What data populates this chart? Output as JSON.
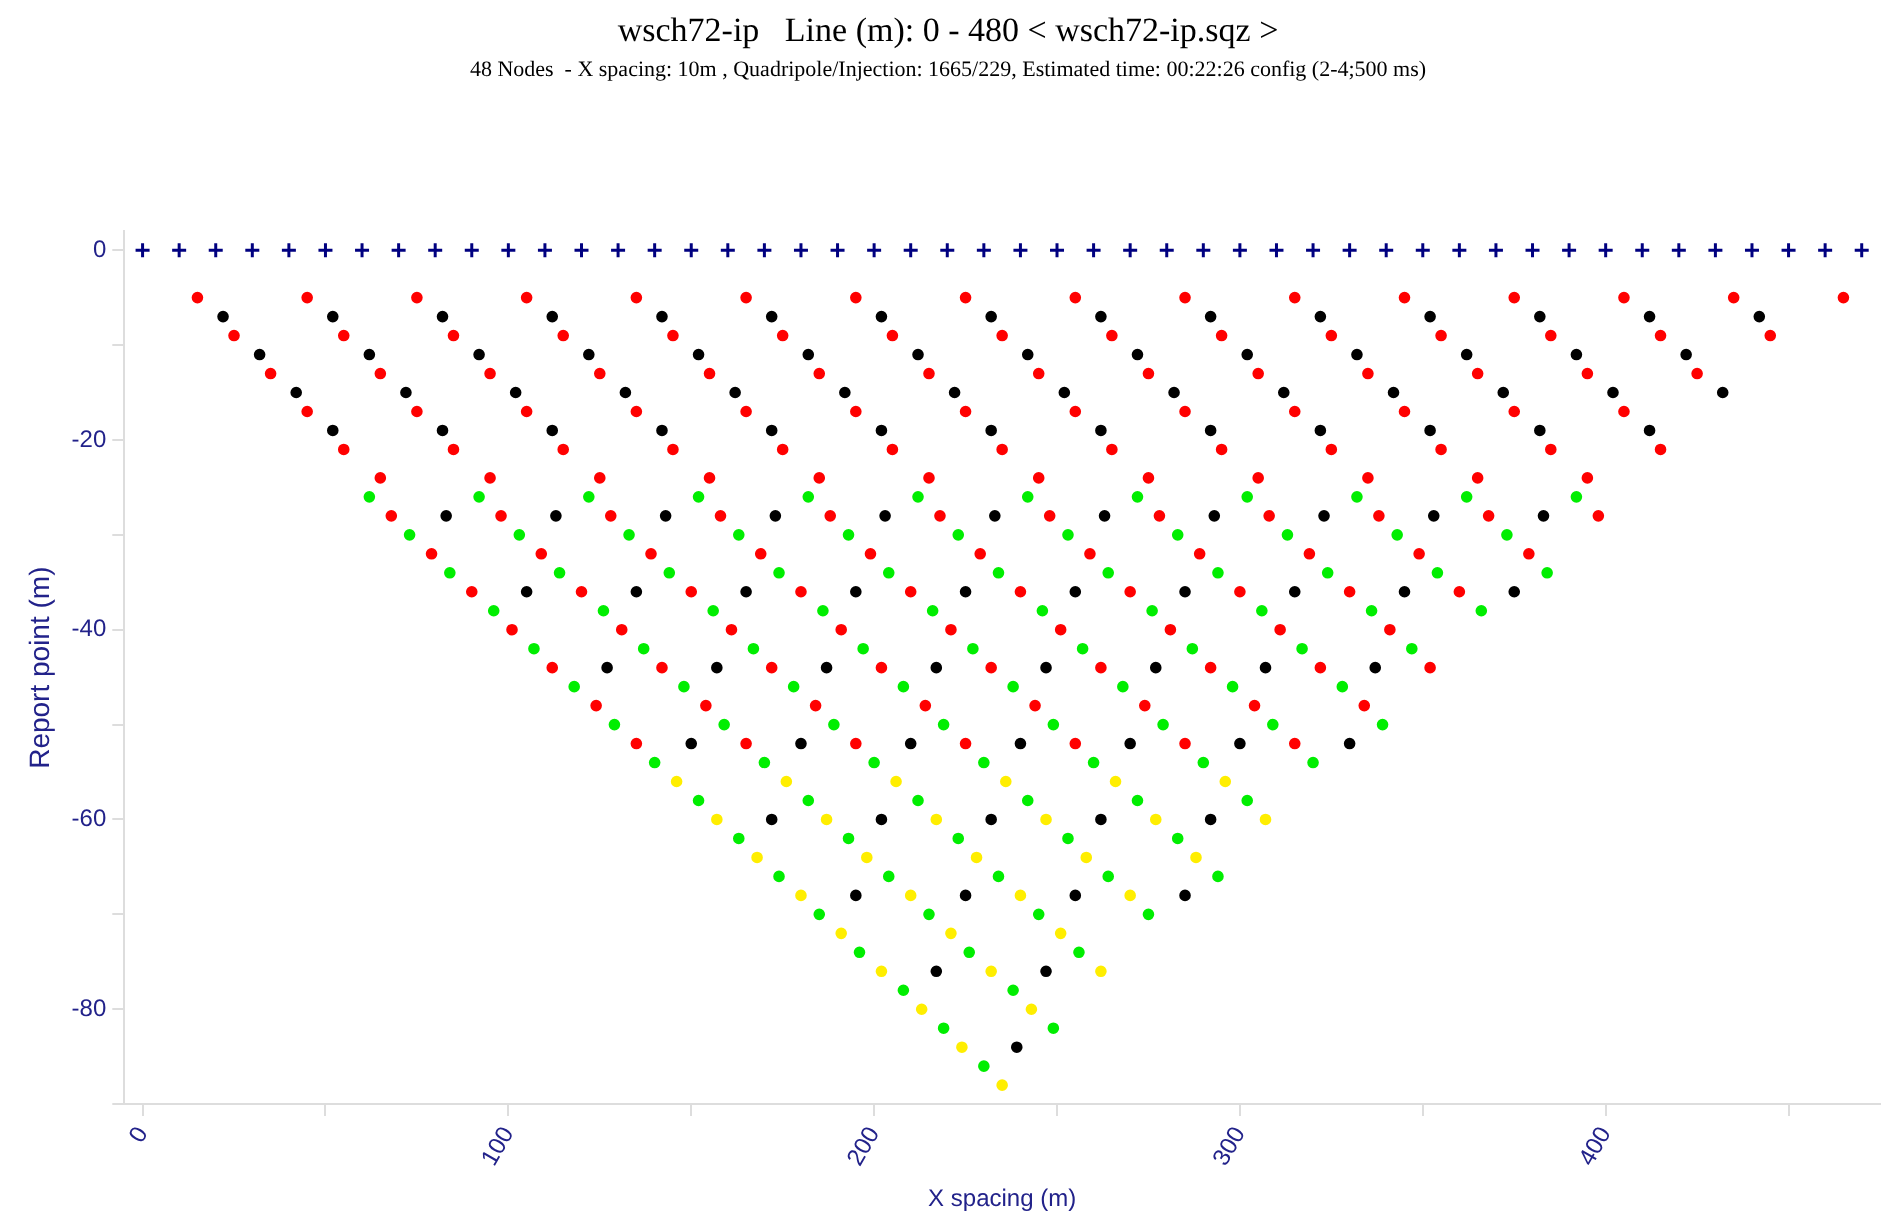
{
  "chart_data": {
    "type": "scatter",
    "title": "wsch72-ip   Line (m): 0 - 480 < wsch72-ip.sqz >",
    "subtitle": "48 Nodes  - X spacing: 10m , Quadripole/Injection: 1665/229, Estimated time: 00:22:26 config (2-4;500 ms)",
    "xlabel": "X spacing (m)",
    "ylabel": "Report point (m)",
    "xlim": [
      -5,
      475
    ],
    "ylim": [
      -90,
      2
    ],
    "xticks": [
      0,
      {
        "value": 50,
        "label": null
      },
      100,
      {
        "value": 150,
        "label": null
      },
      200,
      {
        "value": 250,
        "label": null
      },
      300,
      {
        "value": 350,
        "label": null
      },
      400,
      {
        "value": 450,
        "label": null
      }
    ],
    "yticks": [
      0,
      {
        "value": -10,
        "label": null
      },
      -20,
      {
        "value": -30,
        "label": null
      },
      -40,
      {
        "value": -50,
        "label": null
      },
      -60,
      {
        "value": -70,
        "label": null
      },
      -80,
      {
        "value": -90,
        "label": null
      }
    ],
    "series": [
      {
        "color": "#000080",
        "marker": "cross",
        "x": [
          0,
          10,
          20,
          30,
          40,
          50,
          60,
          70,
          80,
          90,
          100,
          110,
          120,
          130,
          140,
          150,
          160,
          170,
          180,
          190,
          200,
          210,
          220,
          230,
          240,
          250,
          260,
          270,
          280,
          290,
          300,
          310,
          320,
          330,
          340,
          350,
          360,
          370,
          380,
          390,
          400,
          410,
          420,
          430,
          440,
          450,
          460,
          470
        ],
        "values": [
          0,
          0,
          0,
          0,
          0,
          0,
          0,
          0,
          0,
          0,
          0,
          0,
          0,
          0,
          0,
          0,
          0,
          0,
          0,
          0,
          0,
          0,
          0,
          0,
          0,
          0,
          0,
          0,
          0,
          0,
          0,
          0,
          0,
          0,
          0,
          0,
          0,
          0,
          0,
          0,
          0,
          0,
          0,
          0,
          0,
          0,
          0,
          0
        ]
      },
      {
        "color": "#ffee00",
        "marker": "circle",
        "x": [
          146,
          176,
          206,
          236,
          266,
          296,
          157,
          187,
          217,
          247,
          277,
          307,
          168,
          198,
          228,
          258,
          288,
          180,
          210,
          240,
          270,
          191,
          221,
          251,
          202,
          232,
          262,
          213,
          243,
          224,
          235
        ],
        "values": [
          -56,
          -56,
          -56,
          -56,
          -56,
          -56,
          -60,
          -60,
          -60,
          -60,
          -60,
          -60,
          -64,
          -64,
          -64,
          -64,
          -64,
          -68,
          -68,
          -68,
          -68,
          -72,
          -72,
          -72,
          -76,
          -76,
          -76,
          -80,
          -80,
          -84,
          -88
        ]
      },
      {
        "color": "#00ee00",
        "marker": "circle",
        "x": [
          62,
          92,
          122,
          152,
          182,
          212,
          242,
          272,
          302,
          332,
          362,
          392,
          73,
          103,
          133,
          163,
          193,
          223,
          253,
          283,
          313,
          343,
          373,
          84,
          114,
          144,
          174,
          204,
          234,
          264,
          294,
          324,
          354,
          384,
          96,
          126,
          156,
          186,
          216,
          246,
          276,
          306,
          336,
          366,
          107,
          137,
          167,
          197,
          227,
          257,
          287,
          317,
          347,
          118,
          148,
          178,
          208,
          238,
          268,
          298,
          328,
          129,
          159,
          189,
          219,
          249,
          279,
          309,
          339,
          140,
          170,
          200,
          230,
          260,
          290,
          320,
          152,
          182,
          212,
          242,
          272,
          302,
          163,
          193,
          223,
          253,
          283,
          174,
          204,
          234,
          264,
          294,
          185,
          215,
          245,
          275,
          196,
          226,
          256,
          208,
          238,
          219,
          249,
          230
        ],
        "values": [
          -26,
          -26,
          -26,
          -26,
          -26,
          -26,
          -26,
          -26,
          -26,
          -26,
          -26,
          -26,
          -30,
          -30,
          -30,
          -30,
          -30,
          -30,
          -30,
          -30,
          -30,
          -30,
          -30,
          -34,
          -34,
          -34,
          -34,
          -34,
          -34,
          -34,
          -34,
          -34,
          -34,
          -34,
          -38,
          -38,
          -38,
          -38,
          -38,
          -38,
          -38,
          -38,
          -38,
          -38,
          -42,
          -42,
          -42,
          -42,
          -42,
          -42,
          -42,
          -42,
          -42,
          -46,
          -46,
          -46,
          -46,
          -46,
          -46,
          -46,
          -46,
          -50,
          -50,
          -50,
          -50,
          -50,
          -50,
          -50,
          -50,
          -54,
          -54,
          -54,
          -54,
          -54,
          -54,
          -54,
          -58,
          -58,
          -58,
          -58,
          -58,
          -58,
          -62,
          -62,
          -62,
          -62,
          -62,
          -66,
          -66,
          -66,
          -66,
          -66,
          -70,
          -70,
          -70,
          -70,
          -74,
          -74,
          -74,
          -78,
          -78,
          -82,
          -82,
          -86
        ]
      },
      {
        "color": "#ff0000",
        "marker": "circle",
        "x": [
          15,
          45,
          75,
          105,
          135,
          165,
          195,
          225,
          255,
          285,
          315,
          345,
          375,
          405,
          435,
          465,
          25,
          55,
          85,
          115,
          145,
          175,
          205,
          235,
          265,
          295,
          325,
          355,
          385,
          415,
          445,
          35,
          65,
          95,
          125,
          155,
          185,
          215,
          245,
          275,
          305,
          335,
          365,
          395,
          425,
          45,
          75,
          105,
          135,
          165,
          195,
          225,
          255,
          285,
          315,
          345,
          375,
          405,
          55,
          85,
          115,
          145,
          175,
          205,
          235,
          265,
          295,
          325,
          355,
          385,
          415,
          65,
          95,
          125,
          155,
          185,
          215,
          245,
          275,
          305,
          335,
          365,
          395,
          68,
          98,
          128,
          158,
          188,
          218,
          248,
          278,
          308,
          338,
          368,
          398,
          79,
          109,
          139,
          169,
          199,
          229,
          259,
          289,
          319,
          349,
          379,
          90,
          120,
          150,
          180,
          210,
          240,
          270,
          300,
          330,
          360,
          101,
          131,
          161,
          191,
          221,
          251,
          281,
          311,
          341,
          112,
          142,
          172,
          202,
          232,
          262,
          292,
          322,
          352,
          124,
          154,
          184,
          214,
          244,
          274,
          304,
          334,
          135,
          165,
          195,
          225,
          255,
          285,
          315
        ],
        "values": [
          -5,
          -5,
          -5,
          -5,
          -5,
          -5,
          -5,
          -5,
          -5,
          -5,
          -5,
          -5,
          -5,
          -5,
          -5,
          -5,
          -9,
          -9,
          -9,
          -9,
          -9,
          -9,
          -9,
          -9,
          -9,
          -9,
          -9,
          -9,
          -9,
          -9,
          -9,
          -13,
          -13,
          -13,
          -13,
          -13,
          -13,
          -13,
          -13,
          -13,
          -13,
          -13,
          -13,
          -13,
          -13,
          -17,
          -17,
          -17,
          -17,
          -17,
          -17,
          -17,
          -17,
          -17,
          -17,
          -17,
          -17,
          -17,
          -21,
          -21,
          -21,
          -21,
          -21,
          -21,
          -21,
          -21,
          -21,
          -21,
          -21,
          -21,
          -21,
          -24,
          -24,
          -24,
          -24,
          -24,
          -24,
          -24,
          -24,
          -24,
          -24,
          -24,
          -24,
          -28,
          -28,
          -28,
          -28,
          -28,
          -28,
          -28,
          -28,
          -28,
          -28,
          -28,
          -28,
          -32,
          -32,
          -32,
          -32,
          -32,
          -32,
          -32,
          -32,
          -32,
          -32,
          -32,
          -36,
          -36,
          -36,
          -36,
          -36,
          -36,
          -36,
          -36,
          -36,
          -36,
          -40,
          -40,
          -40,
          -40,
          -40,
          -40,
          -40,
          -40,
          -40,
          -44,
          -44,
          -44,
          -44,
          -44,
          -44,
          -44,
          -44,
          -44,
          -48,
          -48,
          -48,
          -48,
          -48,
          -48,
          -48,
          -48,
          -52,
          -52,
          -52,
          -52,
          -52,
          -52,
          -52
        ]
      },
      {
        "color": "#000000",
        "marker": "circle",
        "x": [
          22,
          52,
          82,
          112,
          142,
          172,
          202,
          232,
          262,
          292,
          322,
          352,
          382,
          412,
          442,
          32,
          62,
          92,
          122,
          152,
          182,
          212,
          242,
          272,
          302,
          332,
          362,
          392,
          422,
          42,
          72,
          102,
          132,
          162,
          192,
          222,
          252,
          282,
          312,
          342,
          372,
          402,
          432,
          52,
          82,
          112,
          142,
          172,
          202,
          232,
          262,
          292,
          322,
          352,
          382,
          412,
          83,
          113,
          143,
          173,
          203,
          233,
          263,
          293,
          323,
          353,
          383,
          105,
          135,
          165,
          195,
          225,
          255,
          285,
          315,
          345,
          375,
          127,
          157,
          187,
          217,
          247,
          277,
          307,
          337,
          150,
          180,
          210,
          240,
          270,
          300,
          330,
          172,
          202,
          232,
          262,
          292,
          195,
          225,
          255,
          285,
          217,
          247,
          239
        ],
        "values": [
          -7,
          -7,
          -7,
          -7,
          -7,
          -7,
          -7,
          -7,
          -7,
          -7,
          -7,
          -7,
          -7,
          -7,
          -7,
          -11,
          -11,
          -11,
          -11,
          -11,
          -11,
          -11,
          -11,
          -11,
          -11,
          -11,
          -11,
          -11,
          -11,
          -15,
          -15,
          -15,
          -15,
          -15,
          -15,
          -15,
          -15,
          -15,
          -15,
          -15,
          -15,
          -15,
          -15,
          -19,
          -19,
          -19,
          -19,
          -19,
          -19,
          -19,
          -19,
          -19,
          -19,
          -19,
          -19,
          -19,
          -28,
          -28,
          -28,
          -28,
          -28,
          -28,
          -28,
          -28,
          -28,
          -28,
          -28,
          -36,
          -36,
          -36,
          -36,
          -36,
          -36,
          -36,
          -36,
          -36,
          -36,
          -44,
          -44,
          -44,
          -44,
          -44,
          -44,
          -44,
          -44,
          -52,
          -52,
          -52,
          -52,
          -52,
          -52,
          -52,
          -60,
          -60,
          -60,
          -60,
          -60,
          -68,
          -68,
          -68,
          -68,
          -76,
          -76,
          -84
        ]
      }
    ]
  }
}
